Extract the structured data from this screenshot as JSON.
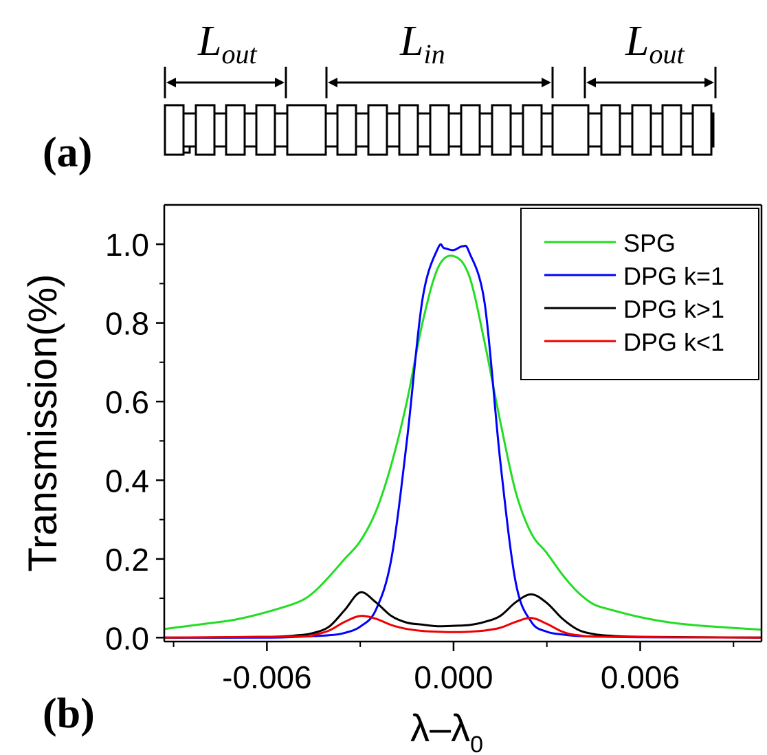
{
  "panel_a": {
    "label": "(a)",
    "segments": [
      {
        "symbol": "L",
        "subscript": "out"
      },
      {
        "symbol": "L",
        "subscript": "in"
      },
      {
        "symbol": "L",
        "subscript": "out"
      }
    ]
  },
  "chart_data": {
    "type": "line",
    "panel_label": "(b)",
    "xlabel": "λ–λ",
    "xlabel_subscript": "0",
    "ylabel": "Transmission(%)",
    "xlim": [
      -0.0093,
      0.0099
    ],
    "ylim": [
      -0.01,
      1.1
    ],
    "xticks": [
      -0.006,
      0.0,
      0.006
    ],
    "xtick_labels": [
      "-0.006",
      "0.000",
      "0.006"
    ],
    "xminor_ticks": [
      -0.009,
      -0.003,
      0.003,
      0.009
    ],
    "yticks": [
      0.0,
      0.2,
      0.4,
      0.6,
      0.8,
      1.0
    ],
    "ytick_labels": [
      "0.0",
      "0.2",
      "0.4",
      "0.6",
      "0.8",
      "1.0"
    ],
    "yminor_ticks": [
      0.1,
      0.3,
      0.5,
      0.7,
      0.9
    ],
    "grid": false,
    "legend_position": "top-right",
    "series": [
      {
        "name": "SPG",
        "color": "#22dd22",
        "x": [
          -0.0093,
          -0.008,
          -0.007,
          -0.006,
          -0.005,
          -0.0045,
          -0.004,
          -0.0035,
          -0.003,
          -0.0025,
          -0.002,
          -0.0015,
          -0.001,
          -0.0005,
          0.0,
          0.0005,
          0.001,
          0.0015,
          0.002,
          0.0025,
          0.003,
          0.0035,
          0.004,
          0.0045,
          0.005,
          0.006,
          0.007,
          0.008,
          0.0099
        ],
        "y": [
          0.022,
          0.035,
          0.046,
          0.065,
          0.09,
          0.115,
          0.155,
          0.2,
          0.245,
          0.32,
          0.44,
          0.6,
          0.8,
          0.94,
          0.97,
          0.92,
          0.75,
          0.55,
          0.37,
          0.265,
          0.215,
          0.16,
          0.115,
          0.085,
          0.072,
          0.052,
          0.038,
          0.03,
          0.02
        ]
      },
      {
        "name": "DPG k=1",
        "color": "#0000ff",
        "x": [
          -0.0093,
          -0.006,
          -0.005,
          -0.004,
          -0.0035,
          -0.003,
          -0.0025,
          -0.002,
          -0.0015,
          -0.001,
          -0.0005,
          -0.0003,
          0.0,
          0.0003,
          0.0005,
          0.001,
          0.0015,
          0.002,
          0.0025,
          0.003,
          0.0035,
          0.004,
          0.005,
          0.006,
          0.0099
        ],
        "y": [
          0.0,
          0.0,
          0.002,
          0.006,
          0.012,
          0.028,
          0.07,
          0.2,
          0.5,
          0.86,
          0.99,
          0.99,
          0.985,
          0.995,
          0.98,
          0.85,
          0.45,
          0.14,
          0.04,
          0.015,
          0.008,
          0.004,
          0.002,
          0.001,
          0.0
        ]
      },
      {
        "name": "DPG k>1",
        "color": "#000000",
        "x": [
          -0.0093,
          -0.006,
          -0.005,
          -0.0045,
          -0.004,
          -0.0035,
          -0.003,
          -0.0025,
          -0.002,
          -0.0015,
          -0.001,
          -0.0005,
          0.0,
          0.0005,
          0.001,
          0.0015,
          0.002,
          0.0025,
          0.003,
          0.0035,
          0.004,
          0.0045,
          0.005,
          0.006,
          0.0099
        ],
        "y": [
          0.0,
          0.002,
          0.006,
          0.012,
          0.028,
          0.07,
          0.115,
          0.09,
          0.055,
          0.038,
          0.033,
          0.029,
          0.03,
          0.032,
          0.04,
          0.055,
          0.09,
          0.11,
          0.088,
          0.048,
          0.02,
          0.009,
          0.005,
          0.002,
          0.0
        ]
      },
      {
        "name": "DPG k<1",
        "color": "#ee0000",
        "x": [
          -0.0093,
          -0.005,
          -0.0045,
          -0.004,
          -0.0035,
          -0.003,
          -0.0025,
          -0.002,
          -0.0015,
          -0.001,
          -0.0005,
          0.0,
          0.0005,
          0.001,
          0.0015,
          0.002,
          0.0025,
          0.003,
          0.0035,
          0.004,
          0.005,
          0.0099
        ],
        "y": [
          0.0,
          0.003,
          0.007,
          0.018,
          0.04,
          0.055,
          0.048,
          0.032,
          0.022,
          0.017,
          0.015,
          0.014,
          0.015,
          0.018,
          0.025,
          0.04,
          0.05,
          0.035,
          0.015,
          0.006,
          0.002,
          0.0
        ]
      }
    ]
  }
}
